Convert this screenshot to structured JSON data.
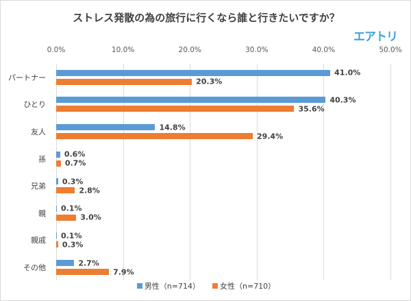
{
  "chart_data": {
    "type": "bar",
    "orientation": "horizontal",
    "title": "ストレス発散の為の旅行に行くなら誰と行きたいですか？",
    "brand": "エアトリ",
    "categories": [
      "パートナー",
      "ひとり",
      "友人",
      "孫",
      "兄弟",
      "親",
      "親戚",
      "その他"
    ],
    "series": [
      {
        "name": "男性（n=714）",
        "color": "#5b9bd5",
        "values": [
          41.0,
          40.3,
          14.8,
          0.6,
          0.3,
          0.1,
          0.1,
          2.7
        ]
      },
      {
        "name": "女性（n=710）",
        "color": "#ed7d31",
        "values": [
          20.3,
          35.6,
          29.4,
          0.7,
          2.8,
          3.0,
          0.3,
          7.9
        ]
      }
    ],
    "xlim": [
      0,
      50
    ],
    "xticks": [
      "0.0%",
      "10.0%",
      "20.0%",
      "30.0%",
      "40.0%",
      "50.0%"
    ],
    "grid": true,
    "legend_position": "bottom"
  }
}
